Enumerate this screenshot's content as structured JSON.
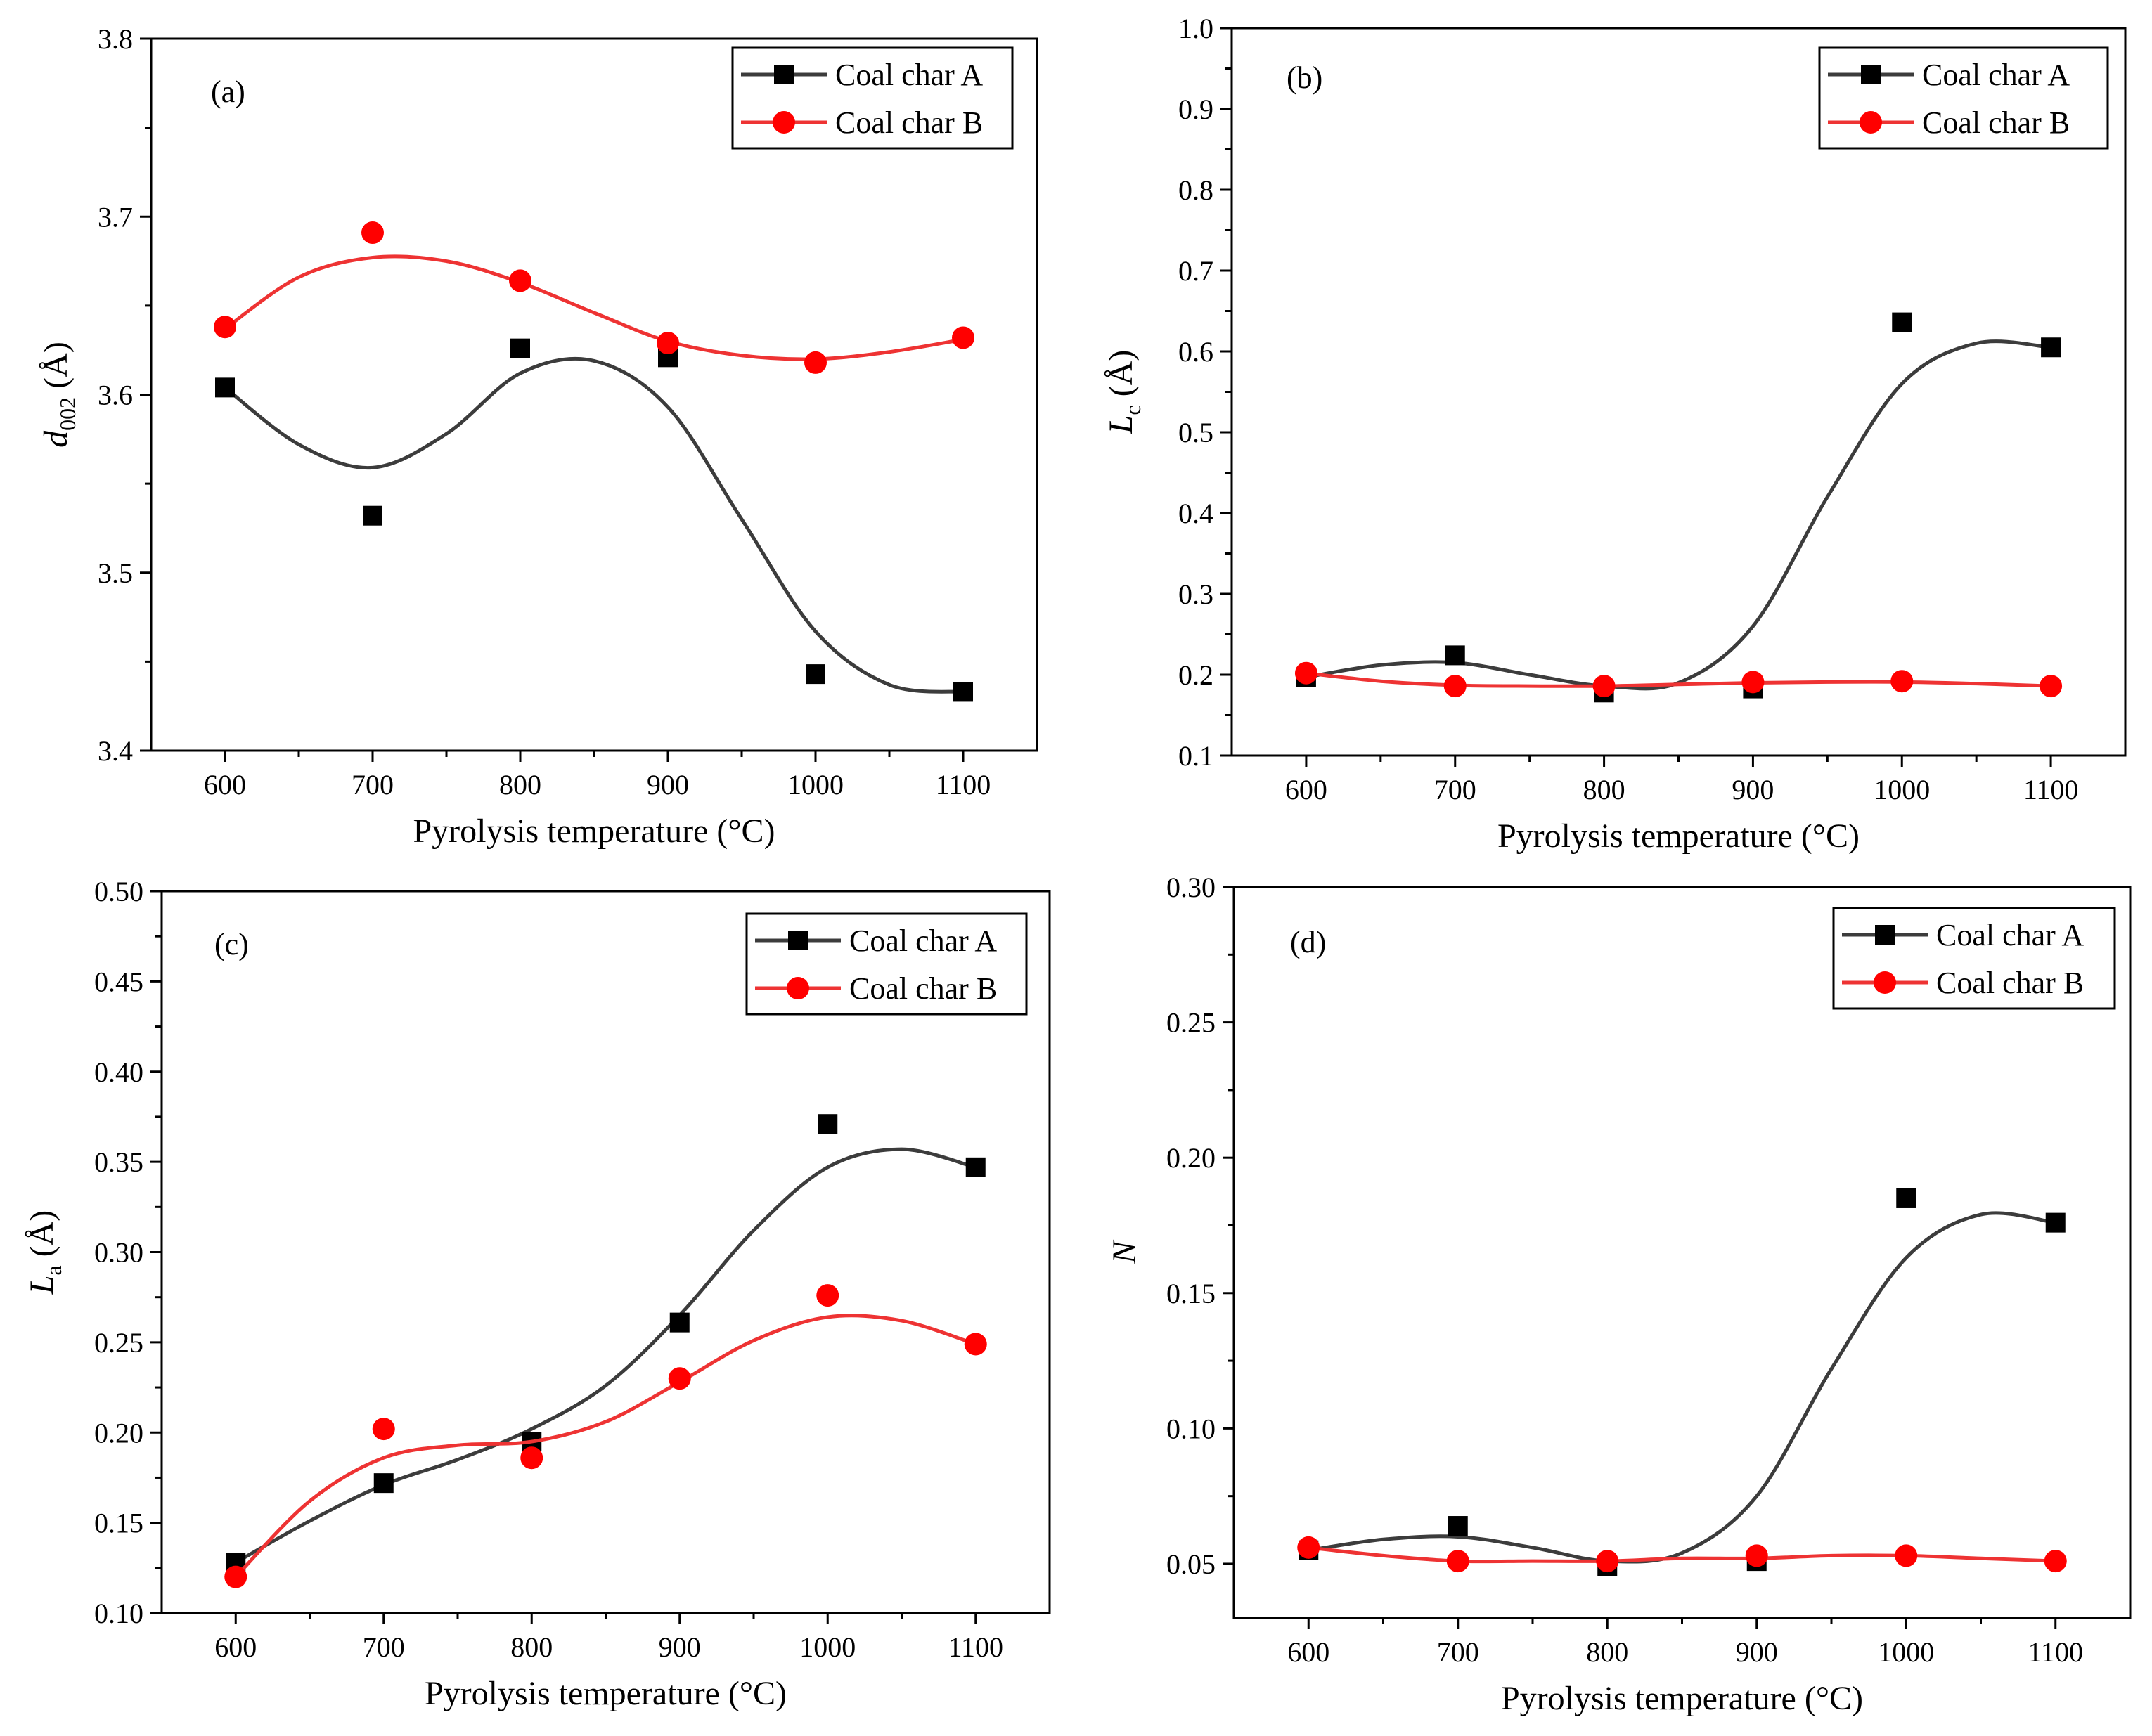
{
  "figure": {
    "colors": {
      "series_a": "#3c3c3c",
      "series_a_marker": "#000000",
      "series_b": "#ee3333",
      "series_b_marker": "#ff0000"
    }
  },
  "chart_data": [
    {
      "id": "a",
      "type": "scatter",
      "panel_label": "(a)",
      "xlabel": "Pyrolysis temperature (°C)",
      "ylabel": {
        "main": "d",
        "sub": "002",
        "unit": " (Å)",
        "italic_main": true
      },
      "xlim": [
        550,
        1150
      ],
      "ylim": [
        3.4,
        3.8
      ],
      "xticks": [
        600,
        700,
        800,
        900,
        1000,
        1100
      ],
      "xtick_labels": [
        "600",
        "700",
        "800",
        "900",
        "1000",
        "1100"
      ],
      "yticks": [
        3.4,
        3.5,
        3.6,
        3.7,
        3.8
      ],
      "ytick_labels": [
        "3.4",
        "3.5",
        "3.6",
        "3.7",
        "3.8"
      ],
      "legend_position": "top-right",
      "series": [
        {
          "name": "Coal char A",
          "marker": "square",
          "x": [
            600,
            700,
            800,
            900,
            1000,
            1100
          ],
          "y": [
            3.604,
            3.532,
            3.626,
            3.621,
            3.443,
            3.433
          ],
          "fit": [
            [
              600,
              3.604
            ],
            [
              650,
              3.572
            ],
            [
              700,
              3.559
            ],
            [
              750,
              3.578
            ],
            [
              800,
              3.612
            ],
            [
              850,
              3.619
            ],
            [
              900,
              3.593
            ],
            [
              950,
              3.53
            ],
            [
              1000,
              3.467
            ],
            [
              1050,
              3.437
            ],
            [
              1100,
              3.433
            ]
          ]
        },
        {
          "name": "Coal char B",
          "marker": "circle",
          "x": [
            600,
            700,
            800,
            900,
            1000,
            1100
          ],
          "y": [
            3.638,
            3.691,
            3.664,
            3.629,
            3.618,
            3.632
          ],
          "fit": [
            [
              600,
              3.637
            ],
            [
              650,
              3.666
            ],
            [
              700,
              3.677
            ],
            [
              750,
              3.675
            ],
            [
              800,
              3.663
            ],
            [
              850,
              3.646
            ],
            [
              900,
              3.63
            ],
            [
              950,
              3.622
            ],
            [
              1000,
              3.62
            ],
            [
              1050,
              3.624
            ],
            [
              1100,
              3.631
            ]
          ]
        }
      ]
    },
    {
      "id": "b",
      "type": "scatter",
      "panel_label": "(b)",
      "xlabel": "Pyrolysis temperature (°C)",
      "ylabel": {
        "main": "L",
        "sub": "c",
        "unit": " (Å)",
        "italic_main": true
      },
      "xlim": [
        550,
        1150
      ],
      "ylim": [
        0.1,
        1.0
      ],
      "xticks": [
        600,
        700,
        800,
        900,
        1000,
        1100
      ],
      "xtick_labels": [
        "600",
        "700",
        "800",
        "900",
        "1000",
        "1100"
      ],
      "yticks": [
        0.1,
        0.2,
        0.3,
        0.4,
        0.5,
        0.6,
        0.7,
        0.8,
        0.9,
        1.0
      ],
      "ytick_labels": [
        "0.1",
        "0.2",
        "0.3",
        "0.4",
        "0.5",
        "0.6",
        "0.7",
        "0.8",
        "0.9",
        "1.0"
      ],
      "legend_position": "top-right",
      "series": [
        {
          "name": "Coal char A",
          "marker": "square",
          "x": [
            600,
            700,
            800,
            900,
            1000,
            1100
          ],
          "y": [
            0.197,
            0.224,
            0.178,
            0.183,
            0.636,
            0.605
          ],
          "fit": [
            [
              600,
              0.197
            ],
            [
              650,
              0.212
            ],
            [
              700,
              0.215
            ],
            [
              750,
              0.2
            ],
            [
              800,
              0.186
            ],
            [
              850,
              0.19
            ],
            [
              900,
              0.26
            ],
            [
              950,
              0.42
            ],
            [
              1000,
              0.56
            ],
            [
              1050,
              0.61
            ],
            [
              1100,
              0.605
            ]
          ]
        },
        {
          "name": "Coal char B",
          "marker": "circle",
          "x": [
            600,
            700,
            800,
            900,
            1000,
            1100
          ],
          "y": [
            0.202,
            0.186,
            0.186,
            0.191,
            0.192,
            0.186
          ],
          "fit": [
            [
              600,
              0.202
            ],
            [
              650,
              0.192
            ],
            [
              700,
              0.187
            ],
            [
              750,
              0.186
            ],
            [
              800,
              0.186
            ],
            [
              850,
              0.188
            ],
            [
              900,
              0.19
            ],
            [
              950,
              0.191
            ],
            [
              1000,
              0.191
            ],
            [
              1050,
              0.189
            ],
            [
              1100,
              0.186
            ]
          ]
        }
      ]
    },
    {
      "id": "c",
      "type": "scatter",
      "panel_label": "(c)",
      "xlabel": "Pyrolysis temperature (°C)",
      "ylabel": {
        "main": "L",
        "sub": "a",
        "unit": " (Å)",
        "italic_main": true
      },
      "xlim": [
        550,
        1150
      ],
      "ylim": [
        0.1,
        0.5
      ],
      "xticks": [
        600,
        700,
        800,
        900,
        1000,
        1100
      ],
      "xtick_labels": [
        "600",
        "700",
        "800",
        "900",
        "1000",
        "1100"
      ],
      "yticks": [
        0.1,
        0.15,
        0.2,
        0.25,
        0.3,
        0.35,
        0.4,
        0.45,
        0.5
      ],
      "ytick_labels": [
        "0.10",
        "0.15",
        "0.20",
        "0.25",
        "0.30",
        "0.35",
        "0.40",
        "0.45",
        "0.50"
      ],
      "legend_position": "top-right",
      "series": [
        {
          "name": "Coal char A",
          "marker": "square",
          "x": [
            600,
            700,
            800,
            900,
            1000,
            1100
          ],
          "y": [
            0.128,
            0.172,
            0.195,
            0.261,
            0.371,
            0.347
          ],
          "fit": [
            [
              600,
              0.128
            ],
            [
              650,
              0.151
            ],
            [
              700,
              0.171
            ],
            [
              750,
              0.185
            ],
            [
              800,
              0.202
            ],
            [
              850,
              0.226
            ],
            [
              900,
              0.265
            ],
            [
              950,
              0.312
            ],
            [
              1000,
              0.347
            ],
            [
              1050,
              0.357
            ],
            [
              1100,
              0.347
            ]
          ]
        },
        {
          "name": "Coal char B",
          "marker": "circle",
          "x": [
            600,
            700,
            800,
            900,
            1000,
            1100
          ],
          "y": [
            0.12,
            0.202,
            0.186,
            0.23,
            0.276,
            0.249
          ],
          "fit": [
            [
              600,
              0.12
            ],
            [
              650,
              0.162
            ],
            [
              700,
              0.186
            ],
            [
              750,
              0.193
            ],
            [
              800,
              0.195
            ],
            [
              850,
              0.206
            ],
            [
              900,
              0.228
            ],
            [
              950,
              0.251
            ],
            [
              1000,
              0.264
            ],
            [
              1050,
              0.262
            ],
            [
              1100,
              0.249
            ]
          ]
        }
      ]
    },
    {
      "id": "d",
      "type": "scatter",
      "panel_label": "(d)",
      "xlabel": "Pyrolysis temperature (°C)",
      "ylabel": {
        "main": "N",
        "sub": "",
        "unit": "",
        "italic_main": true
      },
      "xlim": [
        550,
        1150
      ],
      "ylim": [
        0.03,
        0.3
      ],
      "xticks": [
        600,
        700,
        800,
        900,
        1000,
        1100
      ],
      "xtick_labels": [
        "600",
        "700",
        "800",
        "900",
        "1000",
        "1100"
      ],
      "yticks": [
        0.05,
        0.1,
        0.15,
        0.2,
        0.25,
        0.3
      ],
      "ytick_labels": [
        "0.05",
        "0.10",
        "0.15",
        "0.20",
        "0.25",
        "0.30"
      ],
      "legend_position": "top-right",
      "series": [
        {
          "name": "Coal char A",
          "marker": "square",
          "x": [
            600,
            700,
            800,
            900,
            1000,
            1100
          ],
          "y": [
            0.055,
            0.064,
            0.049,
            0.051,
            0.185,
            0.176
          ],
          "fit": [
            [
              600,
              0.055
            ],
            [
              650,
              0.059
            ],
            [
              700,
              0.06
            ],
            [
              750,
              0.056
            ],
            [
              800,
              0.051
            ],
            [
              850,
              0.054
            ],
            [
              900,
              0.075
            ],
            [
              950,
              0.122
            ],
            [
              1000,
              0.163
            ],
            [
              1050,
              0.179
            ],
            [
              1100,
              0.176
            ]
          ]
        },
        {
          "name": "Coal char B",
          "marker": "circle",
          "x": [
            600,
            700,
            800,
            900,
            1000,
            1100
          ],
          "y": [
            0.056,
            0.051,
            0.051,
            0.053,
            0.053,
            0.051
          ],
          "fit": [
            [
              600,
              0.056
            ],
            [
              650,
              0.053
            ],
            [
              700,
              0.051
            ],
            [
              750,
              0.051
            ],
            [
              800,
              0.051
            ],
            [
              850,
              0.052
            ],
            [
              900,
              0.052
            ],
            [
              950,
              0.053
            ],
            [
              1000,
              0.053
            ],
            [
              1050,
              0.052
            ],
            [
              1100,
              0.051
            ]
          ]
        }
      ]
    }
  ]
}
